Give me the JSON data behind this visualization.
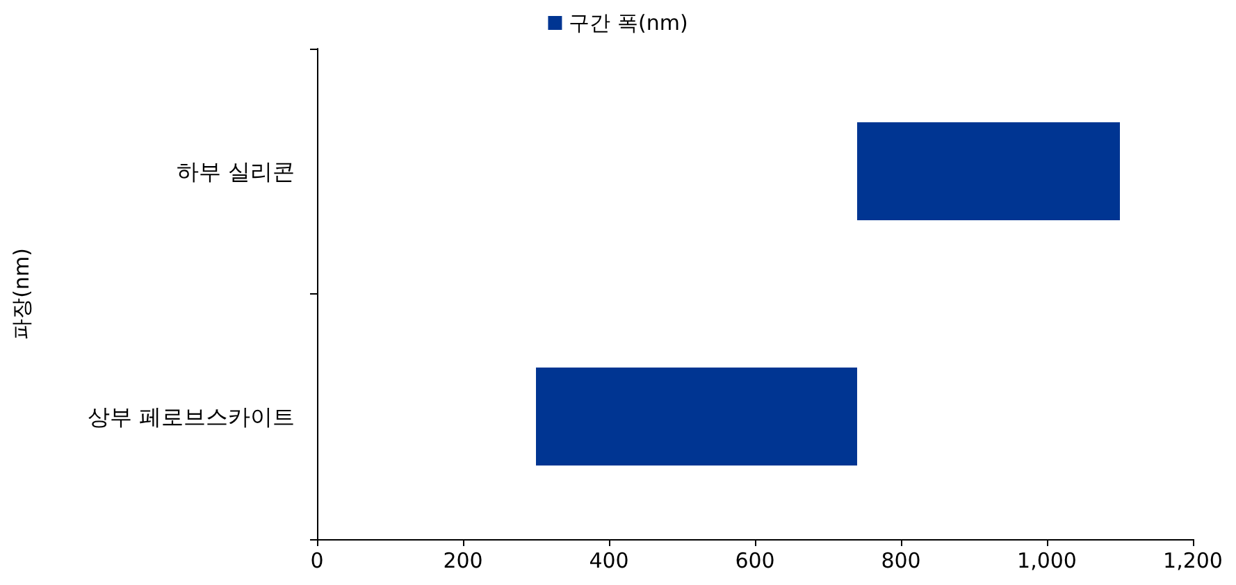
{
  "chart_data": {
    "type": "bar",
    "orientation": "horizontal",
    "ylabel": "파장(nm)",
    "categories": [
      "하부 실리콘",
      "상부 페로브스카이트"
    ],
    "series": [
      {
        "name": "구간 폭(nm)",
        "color": "#003592",
        "values": [
          360,
          440
        ],
        "base": [
          740,
          300
        ]
      }
    ],
    "xlim": [
      0,
      1200
    ],
    "xticks": [
      0,
      200,
      400,
      600,
      800,
      {
        "value": 1000,
        "label": "1,000"
      },
      {
        "value": 1200,
        "label": "1,200"
      }
    ],
    "legend": "top",
    "grid": false
  }
}
